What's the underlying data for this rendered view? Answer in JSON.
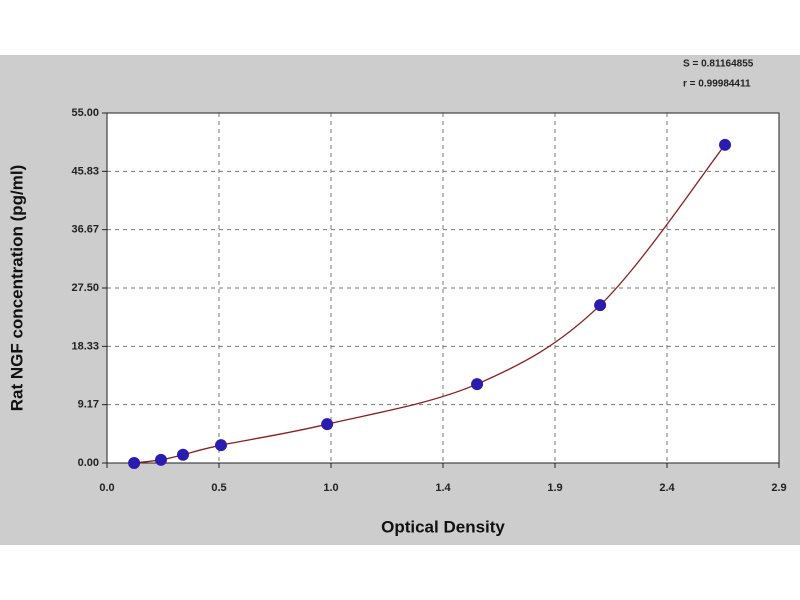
{
  "chart_data": {
    "type": "scatter",
    "x_label": "Optical Density",
    "y_label": "Rat NGF concentration (pg/ml)",
    "annotations": [
      "S = 0.81164855",
      "r = 0.99984411"
    ],
    "xlim": [
      0,
      2.9
    ],
    "ylim": [
      0,
      55
    ],
    "xticks": [
      {
        "value": 0,
        "label": "0.0"
      },
      {
        "value": 0.4833,
        "label": "0.5"
      },
      {
        "value": 0.9667,
        "label": "1.0"
      },
      {
        "value": 1.45,
        "label": "1.4"
      },
      {
        "value": 1.9333,
        "label": "1.9"
      },
      {
        "value": 2.4167,
        "label": "2.4"
      },
      {
        "value": 2.9,
        "label": "2.9"
      }
    ],
    "yticks": [
      {
        "value": 0,
        "label": "0.00"
      },
      {
        "value": 9.17,
        "label": "9.17"
      },
      {
        "value": 18.33,
        "label": "18.33"
      },
      {
        "value": 27.5,
        "label": "27.50"
      },
      {
        "value": 36.67,
        "label": "36.67"
      },
      {
        "value": 45.83,
        "label": "45.83"
      },
      {
        "value": 55,
        "label": "55.00"
      }
    ],
    "grid": true,
    "x": [
      0.117,
      0.233,
      0.328,
      0.492,
      0.95,
      1.597,
      2.128,
      2.667
    ],
    "values": [
      0,
      0.5,
      1.3,
      2.8,
      6.1,
      12.4,
      24.8,
      50.0
    ],
    "color": "#2b1cb0",
    "curve_color": "#8b1f1f"
  }
}
